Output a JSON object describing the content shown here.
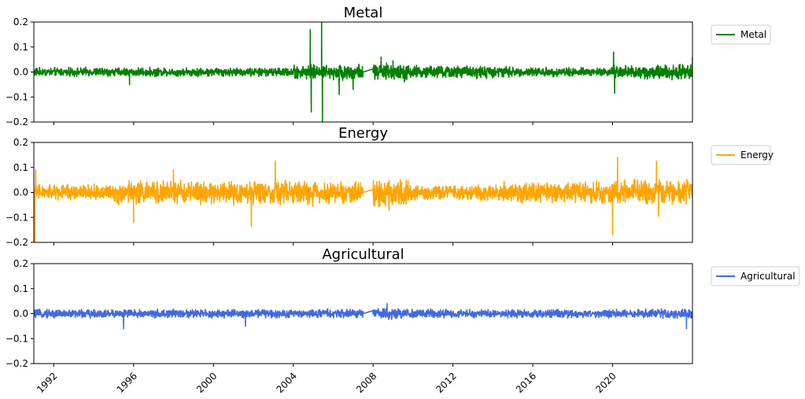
{
  "chart_data": [
    {
      "type": "line",
      "title": "Metal",
      "ylim": [
        -0.2,
        0.2
      ],
      "yticks": [
        "−0.2",
        "−0.1",
        "0.0",
        "0.1",
        "0.2"
      ],
      "xlim": [
        1991,
        2024
      ],
      "legend": "right",
      "color": "#008000",
      "series": [
        {
          "name": "Metal",
          "volatility_regimes": [
            {
              "from": 1991.0,
              "to": 2004.0,
              "amplitude": 0.012
            },
            {
              "from": 2004.0,
              "to": 2006.3,
              "amplitude": 0.02
            },
            {
              "from": 2006.3,
              "to": 2007.5,
              "amplitude": 0.022
            },
            {
              "from": 2007.5,
              "to": 2008.0,
              "amplitude": 0.0
            },
            {
              "from": 2008.0,
              "to": 2009.8,
              "amplitude": 0.025
            },
            {
              "from": 2009.8,
              "to": 2015.0,
              "amplitude": 0.018
            },
            {
              "from": 2015.0,
              "to": 2020.0,
              "amplitude": 0.013
            },
            {
              "from": 2020.0,
              "to": 2024.0,
              "amplitude": 0.02
            }
          ],
          "spikes": [
            {
              "x": 1995.8,
              "y": -0.05
            },
            {
              "x": 2004.85,
              "y": 0.17
            },
            {
              "x": 2004.9,
              "y": -0.16
            },
            {
              "x": 2005.42,
              "y": 0.2
            },
            {
              "x": 2005.46,
              "y": -0.2
            },
            {
              "x": 2006.3,
              "y": -0.09
            },
            {
              "x": 2007.0,
              "y": -0.07
            },
            {
              "x": 2008.4,
              "y": 0.06
            },
            {
              "x": 2009.0,
              "y": 0.045
            },
            {
              "x": 2020.05,
              "y": 0.08
            },
            {
              "x": 2020.1,
              "y": -0.085
            },
            {
              "x": 2024.0,
              "y": 0.06
            }
          ]
        }
      ]
    },
    {
      "type": "line",
      "title": "Energy",
      "ylim": [
        -0.2,
        0.2
      ],
      "yticks": [
        "−0.2",
        "−0.1",
        "0.0",
        "0.1",
        "0.2"
      ],
      "xlim": [
        1991,
        2024
      ],
      "legend": "right",
      "color": "#ffa500",
      "series": [
        {
          "name": "Energy",
          "volatility_regimes": [
            {
              "from": 1991.0,
              "to": 1995.0,
              "amplitude": 0.022
            },
            {
              "from": 1995.0,
              "to": 2001.0,
              "amplitude": 0.032
            },
            {
              "from": 2001.0,
              "to": 2005.0,
              "amplitude": 0.035
            },
            {
              "from": 2005.0,
              "to": 2007.5,
              "amplitude": 0.03
            },
            {
              "from": 2007.5,
              "to": 2008.0,
              "amplitude": 0.0
            },
            {
              "from": 2008.0,
              "to": 2009.8,
              "amplitude": 0.04
            },
            {
              "from": 2009.8,
              "to": 2014.5,
              "amplitude": 0.022
            },
            {
              "from": 2014.5,
              "to": 2020.0,
              "amplitude": 0.03
            },
            {
              "from": 2020.0,
              "to": 2024.0,
              "amplitude": 0.035
            }
          ],
          "spikes": [
            {
              "x": 1991.05,
              "y": -0.2
            },
            {
              "x": 1991.1,
              "y": 0.09
            },
            {
              "x": 1996.0,
              "y": -0.12
            },
            {
              "x": 1998.0,
              "y": 0.09
            },
            {
              "x": 2001.9,
              "y": -0.135
            },
            {
              "x": 2003.1,
              "y": 0.125
            },
            {
              "x": 2008.8,
              "y": -0.07
            },
            {
              "x": 2020.0,
              "y": -0.17
            },
            {
              "x": 2020.25,
              "y": 0.14
            },
            {
              "x": 2022.2,
              "y": 0.125
            },
            {
              "x": 2022.3,
              "y": -0.095
            }
          ]
        }
      ]
    },
    {
      "type": "line",
      "title": "Agricultural",
      "ylim": [
        -0.2,
        0.2
      ],
      "yticks": [
        "−0.2",
        "−0.1",
        "0.0",
        "0.1",
        "0.2"
      ],
      "xlim": [
        1991,
        2024
      ],
      "xticks": [
        1992,
        1996,
        2000,
        2004,
        2008,
        2012,
        2016,
        2020
      ],
      "legend": "right",
      "color": "#4169e1",
      "series": [
        {
          "name": "Agricultural",
          "volatility_regimes": [
            {
              "from": 1991.0,
              "to": 2007.5,
              "amplitude": 0.012
            },
            {
              "from": 2007.5,
              "to": 2008.0,
              "amplitude": 0.0
            },
            {
              "from": 2008.0,
              "to": 2009.8,
              "amplitude": 0.015
            },
            {
              "from": 2009.8,
              "to": 2024.0,
              "amplitude": 0.012
            }
          ],
          "spikes": [
            {
              "x": 1995.5,
              "y": -0.06
            },
            {
              "x": 2001.6,
              "y": -0.05
            },
            {
              "x": 2008.7,
              "y": 0.04
            },
            {
              "x": 2023.7,
              "y": -0.06
            }
          ]
        }
      ]
    }
  ]
}
